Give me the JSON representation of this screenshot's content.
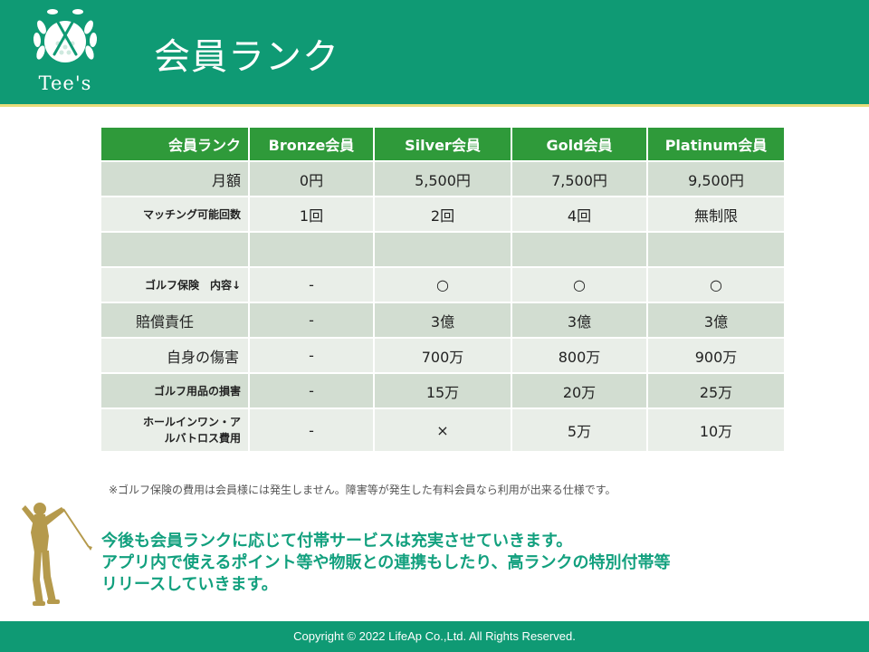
{
  "header": {
    "title": "会員ランク",
    "logo_text": "Tee's"
  },
  "table": {
    "columns": [
      "会員ランク",
      "Bronze会員",
      "Silver会員",
      "Gold会員",
      "Platinum会員"
    ],
    "rows": [
      [
        "月額",
        "0円",
        "5,500円",
        "7,500円",
        "9,500円"
      ],
      [
        "マッチング可能回数",
        "1回",
        "2回",
        "4回",
        "無制限"
      ],
      [
        "",
        "",
        "",
        "",
        ""
      ],
      [
        "ゴルフ保険　内容↓",
        "-",
        "○",
        "○",
        "○"
      ],
      [
        "賠償責任",
        "-",
        "3億",
        "3億",
        "3億"
      ],
      [
        "自身の傷害",
        "-",
        "700万",
        "800万",
        "900万"
      ],
      [
        "ゴルフ用品の損害",
        "-",
        "15万",
        "20万",
        "25万"
      ],
      [
        "ホールインワン・アルバトロス費用",
        "-",
        "×",
        "5万",
        "10万"
      ]
    ],
    "row_label_lines": {
      "hole_in_one_line1": "ホールインワン・ア",
      "hole_in_one_line2": "ルバトロス費用"
    }
  },
  "note": "※ゴルフ保険の費用は会員様には発生しません。障害等が発生した有料会員なら利用が出来る仕様です。",
  "message": {
    "line1": "今後も会員ランクに応じて付帯サービスは充実させていきます。",
    "line2": "アプリ内で使えるポイント等や物販との連携もしたり、高ランクの特別付帯等",
    "line3": "リリースしていきます。"
  },
  "footer": {
    "copyright": "Copyright © 2022 LifeAp Co.,Ltd. All Rights Reserved."
  },
  "colors": {
    "header_green": "#0f9a74",
    "table_header_green": "#2f9a3a",
    "row_dark": "#d2ddd1",
    "row_light": "#e9eee8",
    "message_green": "#12a07e",
    "golfer_gold": "#b59a4c",
    "accent_rule": "#e8dc7a"
  },
  "icons": {
    "logo": "golf-ball-crossed-tees-icon",
    "golfer": "golfer-silhouette-icon"
  }
}
